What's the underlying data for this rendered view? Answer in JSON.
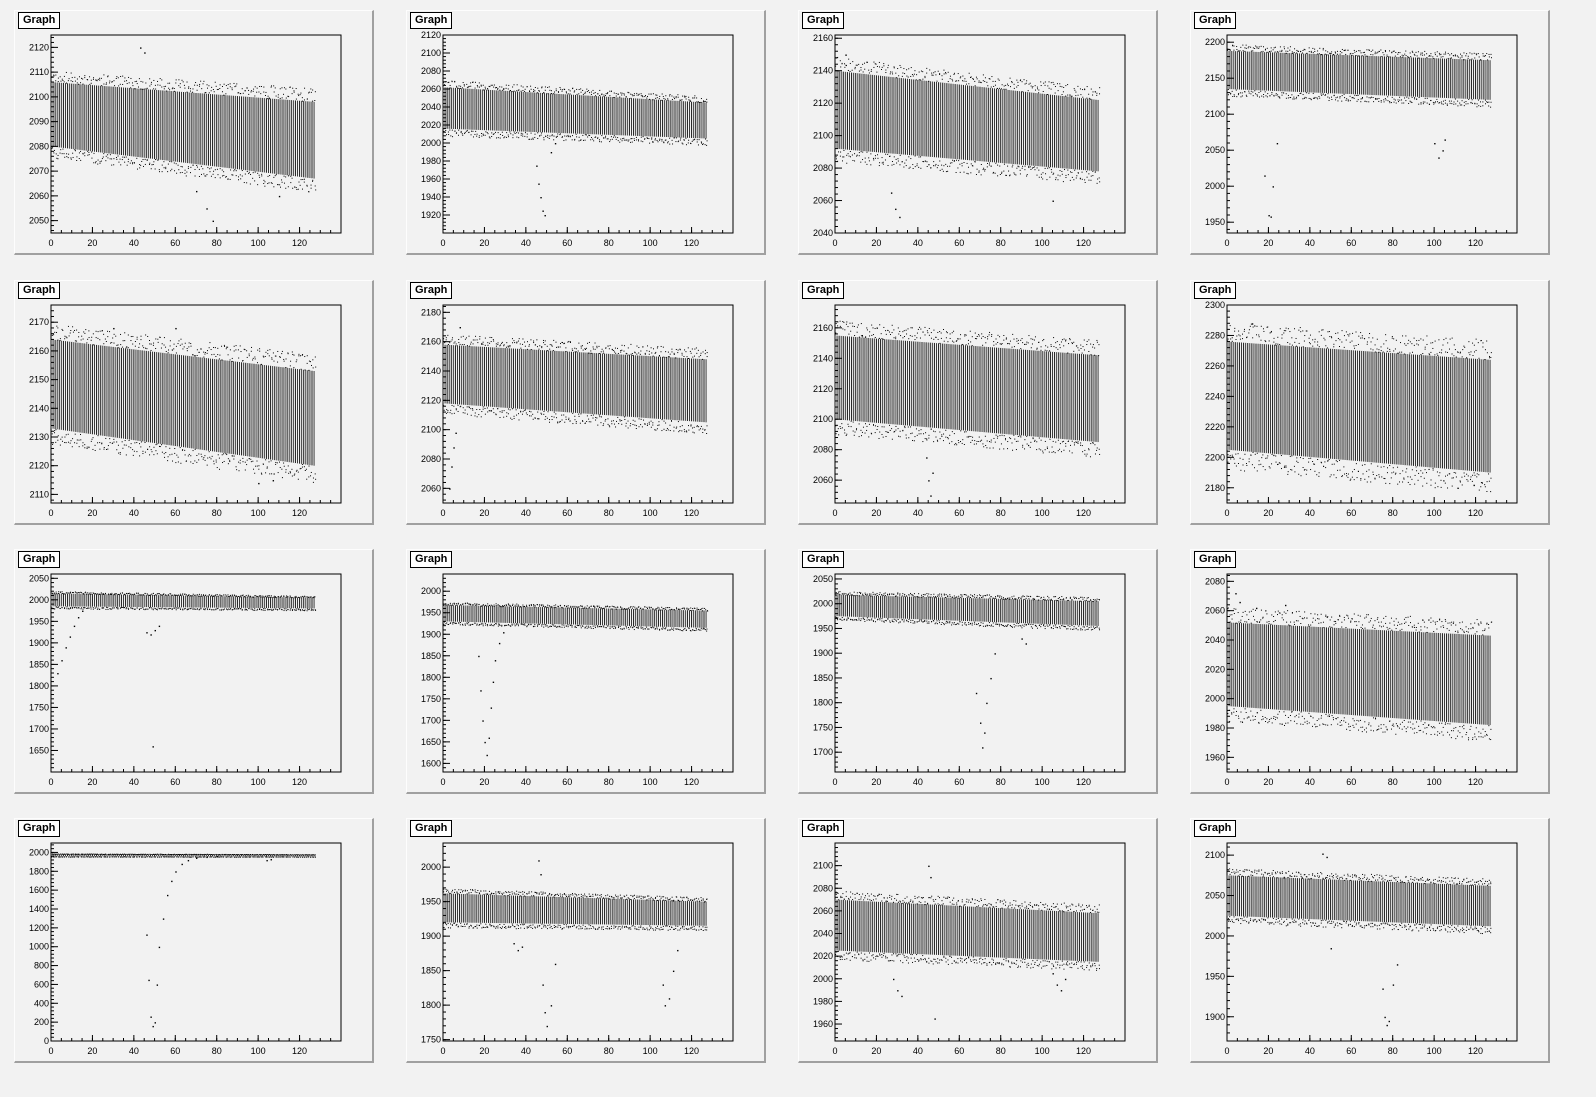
{
  "canvas": {
    "background": "#f2f2f2"
  },
  "chart_data": [
    {
      "type": "scatter",
      "title": "Graph",
      "xlim": [
        0,
        140
      ],
      "ylim": [
        2045,
        2125
      ],
      "xticks": [
        0,
        20,
        40,
        60,
        80,
        100,
        120
      ],
      "yticks": [
        2050,
        2060,
        2070,
        2080,
        2090,
        2100,
        2110,
        2120
      ],
      "band": {
        "x_end": 127,
        "upper_start": 2106,
        "upper_end": 2098,
        "lower_start": 2080,
        "lower_end": 2067
      },
      "outliers": [
        [
          43,
          2120
        ],
        [
          45,
          2118
        ],
        [
          70,
          2062
        ],
        [
          75,
          2055
        ],
        [
          78,
          2050
        ],
        [
          110,
          2060
        ]
      ]
    },
    {
      "type": "scatter",
      "title": "Graph",
      "xlim": [
        0,
        140
      ],
      "ylim": [
        1900,
        2120
      ],
      "xticks": [
        0,
        20,
        40,
        60,
        80,
        100,
        120
      ],
      "yticks": [
        1920,
        1940,
        1960,
        1980,
        2000,
        2020,
        2040,
        2060,
        2080,
        2100,
        2120
      ],
      "band": {
        "x_end": 127,
        "upper_start": 2062,
        "upper_end": 2045,
        "lower_start": 2016,
        "lower_end": 2005
      },
      "outliers": [
        [
          45,
          1975
        ],
        [
          46,
          1955
        ],
        [
          47,
          1940
        ],
        [
          48,
          1925
        ],
        [
          49,
          1920
        ],
        [
          52,
          1990
        ],
        [
          54,
          2000
        ]
      ]
    },
    {
      "type": "scatter",
      "title": "Graph",
      "xlim": [
        0,
        140
      ],
      "ylim": [
        2040,
        2162
      ],
      "xticks": [
        0,
        20,
        40,
        60,
        80,
        100,
        120
      ],
      "yticks": [
        2040,
        2060,
        2080,
        2100,
        2120,
        2140,
        2160
      ],
      "band": {
        "x_end": 127,
        "upper_start": 2140,
        "upper_end": 2122,
        "lower_start": 2092,
        "lower_end": 2078
      },
      "outliers": [
        [
          27,
          2065
        ],
        [
          29,
          2055
        ],
        [
          31,
          2050
        ],
        [
          105,
          2060
        ],
        [
          5,
          2150
        ]
      ]
    },
    {
      "type": "scatter",
      "title": "Graph",
      "xlim": [
        0,
        140
      ],
      "ylim": [
        1935,
        2210
      ],
      "xticks": [
        0,
        20,
        40,
        60,
        80,
        100,
        120
      ],
      "yticks": [
        1950,
        2000,
        2050,
        2100,
        2150,
        2200
      ],
      "band": {
        "x_end": 127,
        "upper_start": 2188,
        "upper_end": 2175,
        "lower_start": 2135,
        "lower_end": 2120
      },
      "outliers": [
        [
          18,
          2015
        ],
        [
          20,
          1960
        ],
        [
          21,
          1958
        ],
        [
          22,
          2000
        ],
        [
          24,
          2060
        ],
        [
          100,
          2060
        ],
        [
          102,
          2040
        ],
        [
          104,
          2050
        ],
        [
          105,
          2065
        ]
      ]
    },
    {
      "type": "scatter",
      "title": "Graph",
      "xlim": [
        0,
        140
      ],
      "ylim": [
        2107,
        2176
      ],
      "xticks": [
        0,
        20,
        40,
        60,
        80,
        100,
        120
      ],
      "yticks": [
        2110,
        2120,
        2130,
        2140,
        2150,
        2160,
        2170
      ],
      "band": {
        "x_end": 127,
        "upper_start": 2164,
        "upper_end": 2153,
        "lower_start": 2133,
        "lower_end": 2120
      },
      "outliers": [
        [
          30,
          2168
        ],
        [
          60,
          2168
        ],
        [
          100,
          2114
        ],
        [
          107,
          2115
        ]
      ]
    },
    {
      "type": "scatter",
      "title": "Graph",
      "xlim": [
        0,
        140
      ],
      "ylim": [
        2050,
        2185
      ],
      "xticks": [
        0,
        20,
        40,
        60,
        80,
        100,
        120
      ],
      "yticks": [
        2060,
        2080,
        2100,
        2120,
        2140,
        2160,
        2180
      ],
      "band": {
        "x_end": 127,
        "upper_start": 2158,
        "upper_end": 2148,
        "lower_start": 2118,
        "lower_end": 2105
      },
      "outliers": [
        [
          3,
          2060
        ],
        [
          4,
          2075
        ],
        [
          5,
          2088
        ],
        [
          6,
          2098
        ],
        [
          8,
          2170
        ]
      ]
    },
    {
      "type": "scatter",
      "title": "Graph",
      "xlim": [
        0,
        140
      ],
      "ylim": [
        2045,
        2175
      ],
      "xticks": [
        0,
        20,
        40,
        60,
        80,
        100,
        120
      ],
      "yticks": [
        2060,
        2080,
        2100,
        2120,
        2140,
        2160
      ],
      "band": {
        "x_end": 127,
        "upper_start": 2155,
        "upper_end": 2142,
        "lower_start": 2100,
        "lower_end": 2085
      },
      "outliers": [
        [
          44,
          2075
        ],
        [
          45,
          2060
        ],
        [
          46,
          2050
        ],
        [
          47,
          2065
        ]
      ]
    },
    {
      "type": "scatter",
      "title": "Graph",
      "xlim": [
        0,
        140
      ],
      "ylim": [
        2170,
        2300
      ],
      "xticks": [
        0,
        20,
        40,
        60,
        80,
        100,
        120
      ],
      "yticks": [
        2180,
        2200,
        2220,
        2240,
        2260,
        2280,
        2300
      ],
      "band": {
        "x_end": 127,
        "upper_start": 2276,
        "upper_end": 2264,
        "lower_start": 2205,
        "lower_end": 2190
      },
      "outliers": [
        [
          12,
          2288
        ],
        [
          119,
          2182
        ]
      ]
    },
    {
      "type": "scatter",
      "title": "Graph",
      "xlim": [
        0,
        140
      ],
      "ylim": [
        1600,
        2060
      ],
      "xticks": [
        0,
        20,
        40,
        60,
        80,
        100,
        120
      ],
      "yticks": [
        1650,
        1700,
        1750,
        1800,
        1850,
        1900,
        1950,
        2000,
        2050
      ],
      "band": {
        "x_end": 127,
        "upper_start": 2015,
        "upper_end": 2005,
        "lower_start": 1985,
        "lower_end": 1980
      },
      "outliers": [
        [
          3,
          1830
        ],
        [
          5,
          1860
        ],
        [
          7,
          1890
        ],
        [
          9,
          1915
        ],
        [
          11,
          1940
        ],
        [
          13,
          1960
        ],
        [
          15,
          1975
        ],
        [
          46,
          1925
        ],
        [
          48,
          1920
        ],
        [
          50,
          1930
        ],
        [
          52,
          1940
        ],
        [
          49,
          1660
        ]
      ]
    },
    {
      "type": "scatter",
      "title": "Graph",
      "xlim": [
        0,
        140
      ],
      "ylim": [
        1580,
        2040
      ],
      "xticks": [
        0,
        20,
        40,
        60,
        80,
        100,
        120
      ],
      "yticks": [
        1600,
        1650,
        1700,
        1750,
        1800,
        1850,
        1900,
        1950,
        2000
      ],
      "band": {
        "x_end": 127,
        "upper_start": 1968,
        "upper_end": 1955,
        "lower_start": 1930,
        "lower_end": 1915
      },
      "outliers": [
        [
          17,
          1850
        ],
        [
          18,
          1770
        ],
        [
          19,
          1700
        ],
        [
          20,
          1650
        ],
        [
          21,
          1620
        ],
        [
          22,
          1660
        ],
        [
          23,
          1730
        ],
        [
          24,
          1790
        ],
        [
          25,
          1840
        ],
        [
          27,
          1880
        ],
        [
          29,
          1905
        ]
      ]
    },
    {
      "type": "scatter",
      "title": "Graph",
      "xlim": [
        0,
        140
      ],
      "ylim": [
        1660,
        2060
      ],
      "xticks": [
        0,
        20,
        40,
        60,
        80,
        100,
        120
      ],
      "yticks": [
        1700,
        1750,
        1800,
        1850,
        1900,
        1950,
        2000,
        2050
      ],
      "band": {
        "x_end": 127,
        "upper_start": 2018,
        "upper_end": 2005,
        "lower_start": 1975,
        "lower_end": 1955
      },
      "outliers": [
        [
          68,
          1820
        ],
        [
          70,
          1760
        ],
        [
          71,
          1710
        ],
        [
          72,
          1740
        ],
        [
          73,
          1800
        ],
        [
          75,
          1850
        ],
        [
          77,
          1900
        ],
        [
          90,
          1930
        ],
        [
          92,
          1920
        ]
      ]
    },
    {
      "type": "scatter",
      "title": "Graph",
      "xlim": [
        0,
        140
      ],
      "ylim": [
        1950,
        2085
      ],
      "xticks": [
        0,
        20,
        40,
        60,
        80,
        100,
        120
      ],
      "yticks": [
        1960,
        1980,
        2000,
        2020,
        2040,
        2060,
        2080
      ],
      "band": {
        "x_end": 127,
        "upper_start": 2052,
        "upper_end": 2043,
        "lower_start": 1995,
        "lower_end": 1982
      },
      "outliers": [
        [
          4,
          2072
        ],
        [
          6,
          2066
        ],
        [
          14,
          2062
        ],
        [
          28,
          2064
        ]
      ]
    },
    {
      "type": "scatter",
      "title": "Graph",
      "xlim": [
        0,
        140
      ],
      "ylim": [
        0,
        2100
      ],
      "xticks": [
        0,
        20,
        40,
        60,
        80,
        100,
        120
      ],
      "yticks": [
        0,
        200,
        400,
        600,
        800,
        1000,
        1200,
        1400,
        1600,
        1800,
        2000
      ],
      "band": {
        "x_end": 127,
        "upper_start": 1985,
        "upper_end": 1978,
        "lower_start": 1960,
        "lower_end": 1958
      },
      "outliers": [
        [
          46,
          1130
        ],
        [
          47,
          650
        ],
        [
          48,
          260
        ],
        [
          49,
          160
        ],
        [
          50,
          200
        ],
        [
          51,
          600
        ],
        [
          52,
          1000
        ],
        [
          54,
          1300
        ],
        [
          56,
          1550
        ],
        [
          58,
          1700
        ],
        [
          60,
          1800
        ],
        [
          63,
          1880
        ],
        [
          66,
          1920
        ],
        [
          70,
          1945
        ],
        [
          75,
          1955
        ],
        [
          80,
          1962
        ],
        [
          104,
          1920
        ],
        [
          106,
          1930
        ]
      ]
    },
    {
      "type": "scatter",
      "title": "Graph",
      "xlim": [
        0,
        140
      ],
      "ylim": [
        1748,
        2035
      ],
      "xticks": [
        0,
        20,
        40,
        60,
        80,
        100,
        120
      ],
      "yticks": [
        1750,
        1800,
        1850,
        1900,
        1950,
        2000
      ],
      "band": {
        "x_end": 127,
        "upper_start": 1962,
        "upper_end": 1950,
        "lower_start": 1920,
        "lower_end": 1915
      },
      "outliers": [
        [
          34,
          1890
        ],
        [
          36,
          1880
        ],
        [
          38,
          1885
        ],
        [
          46,
          2010
        ],
        [
          47,
          1990
        ],
        [
          48,
          1830
        ],
        [
          49,
          1790
        ],
        [
          50,
          1770
        ],
        [
          52,
          1800
        ],
        [
          54,
          1860
        ],
        [
          106,
          1830
        ],
        [
          107,
          1800
        ],
        [
          109,
          1810
        ],
        [
          111,
          1850
        ],
        [
          113,
          1880
        ]
      ]
    },
    {
      "type": "scatter",
      "title": "Graph",
      "xlim": [
        0,
        140
      ],
      "ylim": [
        1945,
        2120
      ],
      "xticks": [
        0,
        20,
        40,
        60,
        80,
        100,
        120
      ],
      "yticks": [
        1960,
        1980,
        2000,
        2020,
        2040,
        2060,
        2080,
        2100
      ],
      "band": {
        "x_end": 127,
        "upper_start": 2070,
        "upper_end": 2058,
        "lower_start": 2025,
        "lower_end": 2015
      },
      "outliers": [
        [
          28,
          2000
        ],
        [
          30,
          1990
        ],
        [
          32,
          1985
        ],
        [
          45,
          2100
        ],
        [
          46,
          2090
        ],
        [
          48,
          1965
        ],
        [
          105,
          2005
        ],
        [
          107,
          1995
        ],
        [
          109,
          1990
        ],
        [
          111,
          2000
        ]
      ]
    },
    {
      "type": "scatter",
      "title": "Graph",
      "xlim": [
        0,
        140
      ],
      "ylim": [
        1870,
        2115
      ],
      "xticks": [
        0,
        20,
        40,
        60,
        80,
        100,
        120
      ],
      "yticks": [
        1900,
        1950,
        2000,
        2050,
        2100
      ],
      "band": {
        "x_end": 127,
        "upper_start": 2075,
        "upper_end": 2062,
        "lower_start": 2025,
        "lower_end": 2012
      },
      "outliers": [
        [
          46,
          2102
        ],
        [
          48,
          2098
        ],
        [
          50,
          1985
        ],
        [
          75,
          1935
        ],
        [
          76,
          1900
        ],
        [
          77,
          1890
        ],
        [
          78,
          1895
        ],
        [
          80,
          1940
        ],
        [
          82,
          1965
        ]
      ]
    }
  ]
}
